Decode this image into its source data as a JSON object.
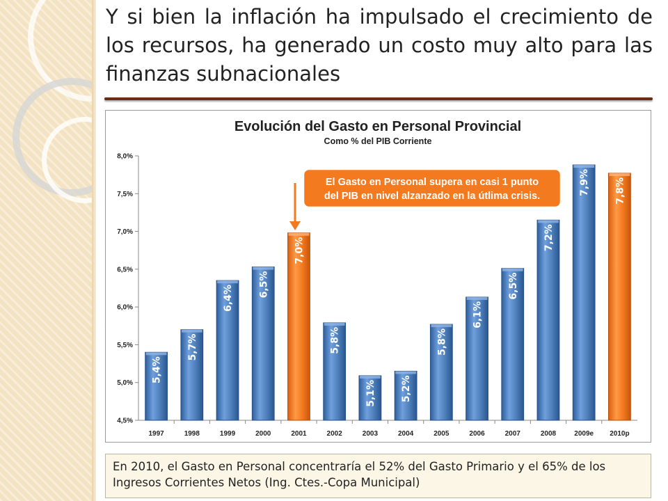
{
  "slide": {
    "title": "Y si bien la inflación ha impulsado el crecimiento de los recursos, ha generado un costo muy alto para las finanzas subnacionales",
    "note": "En 2010, el Gasto en Personal concentraría el 52% del Gasto Primario y el 65% de los Ingresos Corrientes Netos (Ing. Ctes.-Copa Municipal)"
  },
  "chart_data": {
    "type": "bar",
    "title": "Evolución del Gasto en Personal Provincial",
    "subtitle": "Como % del PIB Corriente",
    "categories": [
      "1997",
      "1998",
      "1999",
      "2000",
      "2001",
      "2002",
      "2003",
      "2004",
      "2005",
      "2006",
      "2007",
      "2008",
      "2009e",
      "2010p"
    ],
    "values": [
      5.4,
      5.7,
      6.35,
      6.53,
      6.98,
      5.79,
      5.09,
      5.15,
      5.77,
      6.13,
      6.51,
      7.15,
      7.88,
      7.77
    ],
    "data_labels": [
      "5,4%",
      "5,7%",
      "6,4%",
      "6,5%",
      "7,0%",
      "5,8%",
      "5,1%",
      "5,2%",
      "5,8%",
      "6,1%",
      "6,5%",
      "7,2%",
      "7,9%",
      "7,8%"
    ],
    "highlight_categories": [
      "2001",
      "2010p"
    ],
    "colors": {
      "bar": "#4f81bd",
      "highlight": "#f47a1f",
      "callout_fill": "#f47a1f",
      "callout_border": "#ffffff"
    },
    "ylim": [
      4.5,
      8.0
    ],
    "yticks": [
      4.5,
      5.0,
      5.5,
      6.0,
      6.5,
      7.0,
      7.5,
      8.0
    ],
    "ytick_labels": [
      "4,5%",
      "5,0%",
      "5,5%",
      "6,0%",
      "6,5%",
      "7,0%",
      "7,5%",
      "8,0%"
    ],
    "grid": false,
    "annotation": {
      "lines": [
        "El Gasto en Personal supera en casi 1 punto",
        "del PIB en nivel alzanzado en la útlima crisis."
      ],
      "arrow_to": "2001"
    }
  }
}
